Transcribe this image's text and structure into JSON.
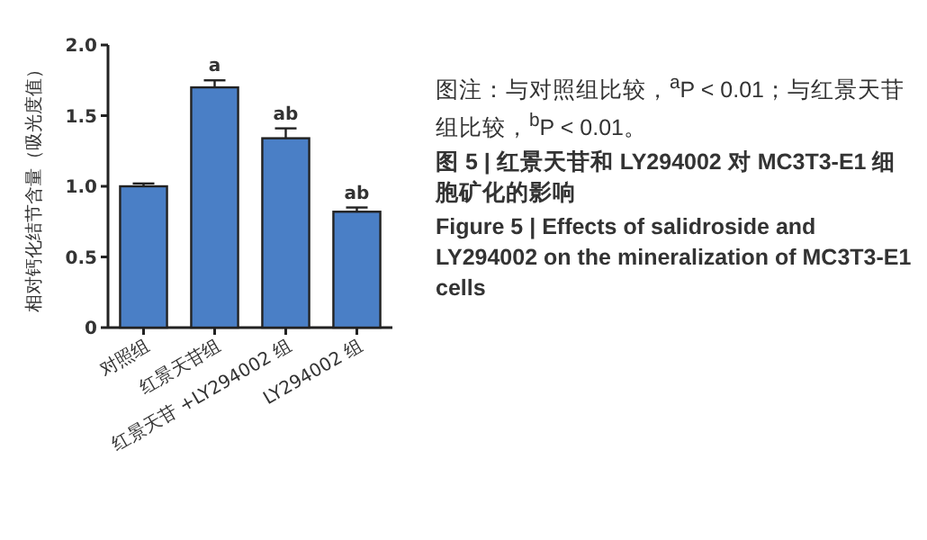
{
  "chart_data": {
    "type": "bar",
    "title": "图 5 | 红景天苷和 LY294002 对 MC3T3-E1 细胞矿化的影响",
    "subtitle": "Figure 5 | Effects of salidroside and LY294002 on the mineralization of MC3T3-E1 cells",
    "ylabel": "相对钙化结节含量（吸光度值）",
    "categories": [
      "对照组",
      "红景天苷组",
      "红景天苷 +LY294002 组",
      "LY294002 组"
    ],
    "values": [
      1.0,
      1.7,
      1.34,
      0.82
    ],
    "errors": [
      0.02,
      0.05,
      0.07,
      0.03
    ],
    "color": "#4a7fc6",
    "ylim": [
      0,
      2.0
    ],
    "yticks": [
      {
        "value": 0,
        "label": "0"
      },
      0.5,
      {
        "value": 1,
        "label": "1.0"
      },
      1.5,
      {
        "value": 2,
        "label": "2.0"
      }
    ],
    "annotations": [
      {
        "text": "a",
        "x": "红景天苷组",
        "y": 1.7
      },
      {
        "text": "ab",
        "x": "红景天苷 +LY294002 组",
        "y": 1.34
      },
      {
        "text": "ab",
        "x": "LY294002 组",
        "y": 0.82
      },
      "图注：与对照组比较，$^{a}$P < 0.01；与红景天苷组比较，$^{b}$P < 0.01。"
    ]
  }
}
